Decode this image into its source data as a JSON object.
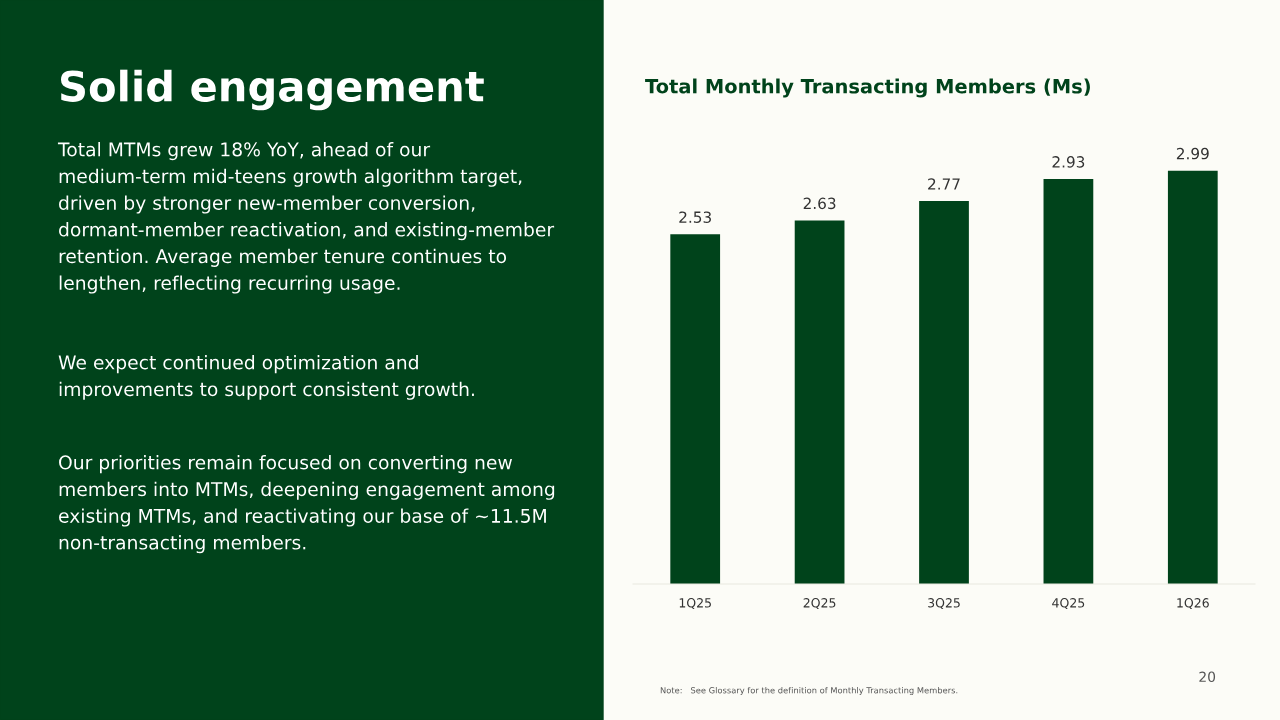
{
  "chart_data": {
    "type": "bar",
    "title": "Total Monthly Transacting Members (Ms)",
    "categories": [
      "1Q25",
      "2Q25",
      "3Q25",
      "4Q25",
      "1Q26"
    ],
    "values": [
      2.53,
      2.63,
      2.77,
      2.93,
      2.99
    ],
    "color": "#00431b",
    "data_labels": true,
    "grid": false,
    "legend": false,
    "tick_labels": "x",
    "annotations": [
      "Solid engagement",
      "Total MTMs grew 18% YoY, ahead of our medium-term mid-teens growth algorithm target, driven by stronger new-member conversion, dormant-member reactivation, and existing-member retention. Average member tenure continues to lengthen, reflecting recurring usage.",
      "We expect continued optimization and improvements to support consistent growth.",
      "Our priorities remain focused on converting new members into MTMs, deepening engagement among existing MTMs, and reactivating our base of ~11.5M non-transacting members.",
      "Note:   See Glossary for the definition of Monthly Transacting Members.",
      "20"
    ]
  }
}
